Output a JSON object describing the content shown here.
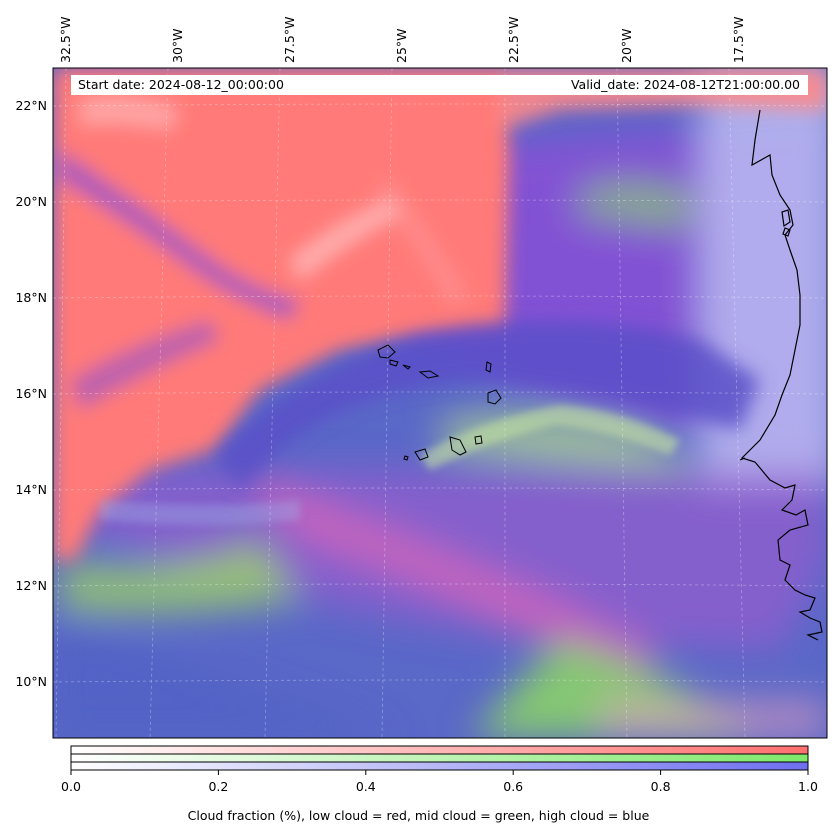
{
  "header": {
    "start_date": "Start date: 2024-08-12_00:00:00",
    "valid_date": "Valid_date: 2024-08-12T21:00:00.00"
  },
  "axes": {
    "lon_labels": [
      "32.5°W",
      "30°W",
      "27.5°W",
      "25°W",
      "22.5°W",
      "20°W",
      "17.5°W"
    ],
    "lat_labels": [
      "22°N",
      "20°N",
      "18°N",
      "16°N",
      "14°N",
      "12°N",
      "10°N"
    ]
  },
  "colorbar": {
    "ticks": [
      "0.0",
      "0.2",
      "0.4",
      "0.6",
      "0.8",
      "1.0"
    ],
    "title": "Cloud fraction (%), low cloud = red, mid cloud = green, high cloud = blue",
    "colors": {
      "low": "#ff6f6f",
      "mid": "#7ee86a",
      "high": "#6e6ef0"
    }
  },
  "map_colors": {
    "low_cloud": "#ff7a78",
    "mid_cloud": "#8ad26a",
    "high_cloud": "#5a68c8",
    "purple_mix": "#8a4fd6",
    "pale_high": "#b7b7ef",
    "coastline": "#000000"
  }
}
